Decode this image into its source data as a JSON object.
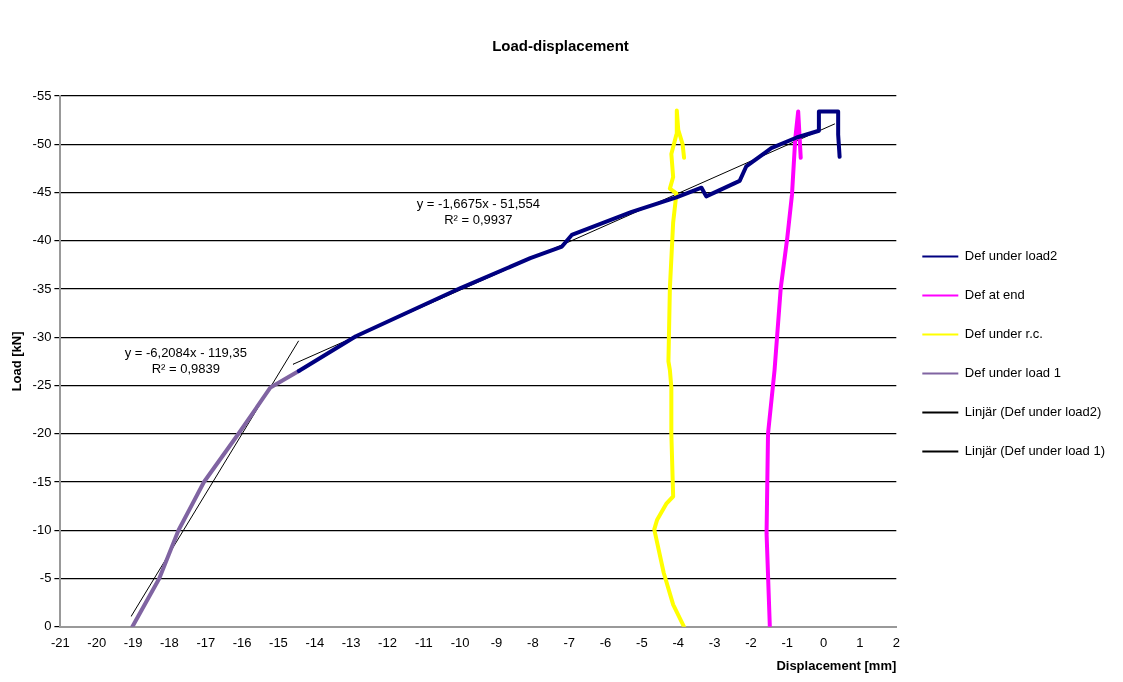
{
  "chart_data": {
    "type": "line",
    "title": "Load-displacement",
    "xlabel": "Displacement [mm]",
    "ylabel": "Load [kN]",
    "xlim": [
      -21,
      2
    ],
    "xticks": [
      -21,
      -20,
      -19,
      -18,
      -17,
      -16,
      -15,
      -14,
      -13,
      -12,
      -11,
      -10,
      -9,
      -8,
      -7,
      -6,
      -5,
      -4,
      -3,
      -2,
      -1,
      0,
      1,
      2
    ],
    "ylim": [
      0,
      -55
    ],
    "yticks": [
      0,
      -5,
      -10,
      -15,
      -20,
      -25,
      -30,
      -35,
      -40,
      -45,
      -50,
      -55
    ],
    "grid": "y",
    "legend": "right",
    "series": [
      {
        "name": "Def under load2",
        "color": "#000080",
        "x": [
          -14.44,
          -12.87,
          -9.99,
          -8.07,
          -7.2,
          -6.93,
          -5.28,
          -4.05,
          -3.36,
          -3.23,
          -2.31,
          -2.13,
          -1.44,
          -0.74,
          -0.13,
          -0.13,
          0.4,
          0.4,
          0.44
        ],
        "values": [
          -26.5,
          -30.1,
          -35.1,
          -38.2,
          -39.4,
          -40.6,
          -43.0,
          -44.5,
          -45.5,
          -44.6,
          -46.2,
          -47.7,
          -49.6,
          -50.7,
          -51.4,
          -53.4,
          -53.4,
          -51.0,
          -48.7
        ]
      },
      {
        "name": "Def at end",
        "color": "#ff00ff",
        "x": [
          -1.48,
          -1.57,
          -1.53,
          -1.35,
          -1.18,
          -1.0,
          -0.87,
          -0.78,
          -0.7,
          -0.63
        ],
        "values": [
          0,
          -9.7,
          -20,
          -26.6,
          -35.1,
          -40.3,
          -44.8,
          -50.6,
          -53.4,
          -48.6
        ]
      },
      {
        "name": "Def under r.c.",
        "color": "#ffff00",
        "x": [
          -3.84,
          -4.14,
          -4.4,
          -4.66,
          -4.58,
          -4.32,
          -4.14,
          -4.19,
          -4.19,
          -4.23,
          -4.27,
          -4.23,
          -4.14,
          -4.05,
          -4.23,
          -4.14,
          -4.19,
          -4.05,
          -4.04,
          -4.0,
          -3.88,
          -3.84
        ],
        "values": [
          0,
          -2.3,
          -5.6,
          -10.1,
          -11.1,
          -12.8,
          -13.5,
          -20.0,
          -24.8,
          -26.6,
          -27.5,
          -35.1,
          -41.9,
          -44.9,
          -45.4,
          -46.6,
          -49.0,
          -51.0,
          -53.5,
          -51.5,
          -50.0,
          -48.6
        ]
      },
      {
        "name": "Def under load 1",
        "color": "#8064a2",
        "x": [
          -19.02,
          -18.28,
          -17.75,
          -17.05,
          -16.1,
          -15.22,
          -14.44
        ],
        "values": [
          0,
          -5,
          -10,
          -15,
          -20,
          -24.8,
          -26.5
        ]
      },
      {
        "name": "Linjär (Def under load2)",
        "color": "#000000",
        "type": "line",
        "x": [
          -14.6,
          0.3
        ],
        "values": [
          -27.2,
          -52.1
        ]
      },
      {
        "name": "Linjär (Def under load 1)",
        "color": "#000000",
        "type": "line",
        "x": [
          -19.05,
          -14.45
        ],
        "values": [
          -1.1,
          -29.6
        ]
      }
    ],
    "annotations": [
      "y = -1,6675x - 51,554\nR² = 0,9937",
      "y = -6,2084x - 119,35\nR² = 0,9839"
    ]
  }
}
